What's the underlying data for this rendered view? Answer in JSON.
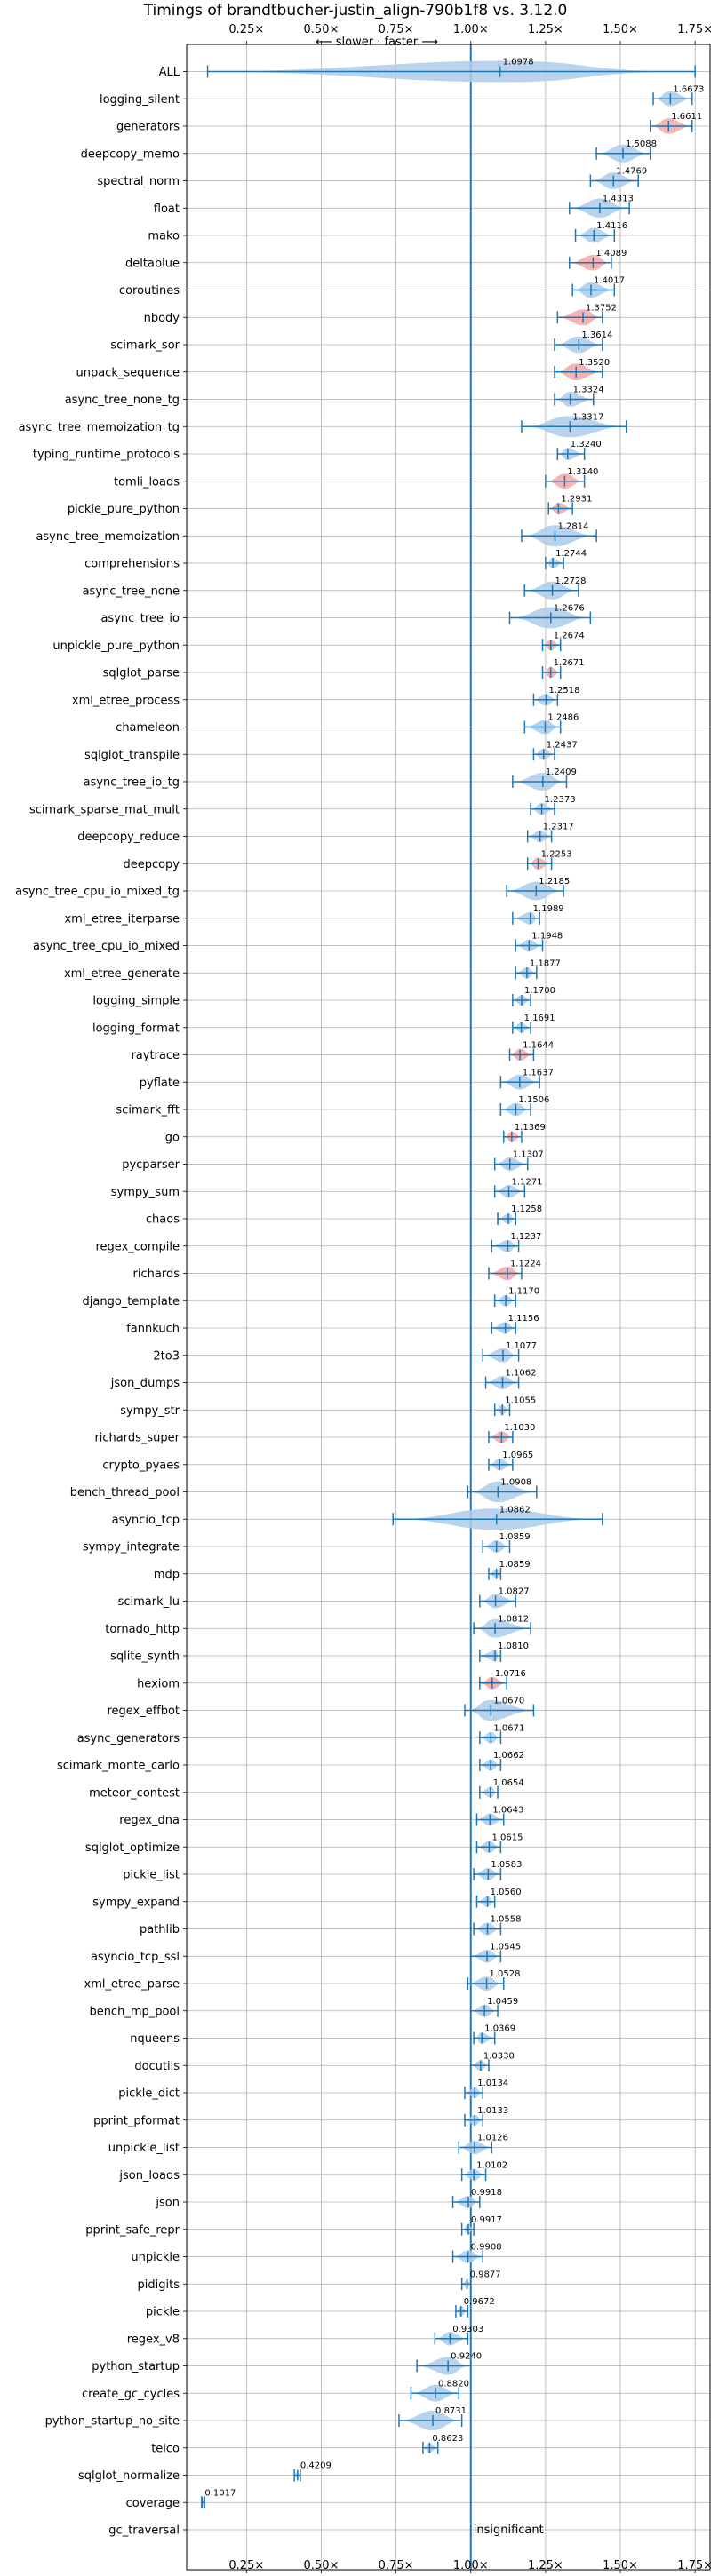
{
  "chart_data": {
    "type": "violin",
    "title": "Timings of brandtbucher-justin_align-790b1f8 vs. 3.12.0",
    "subtitle": "⟵ slower · faster ⟶",
    "xlim": [
      0.05,
      1.8
    ],
    "x_ticks": [
      0.25,
      0.5,
      0.75,
      1.0,
      1.25,
      1.5,
      1.75
    ],
    "x_tick_labels": [
      "0.25×",
      "0.50×",
      "0.75×",
      "1.00×",
      "1.25×",
      "1.50×",
      "1.75×"
    ],
    "grid": true,
    "reference_line": 1.0,
    "colors": {
      "faster": "#f4a6a6",
      "neutral": "#aecbea",
      "line": "#1f77b4"
    },
    "categories": [
      "ALL",
      "logging_silent",
      "generators",
      "deepcopy_memo",
      "spectral_norm",
      "float",
      "mako",
      "deltablue",
      "coroutines",
      "nbody",
      "scimark_sor",
      "unpack_sequence",
      "async_tree_none_tg",
      "async_tree_memoization_tg",
      "typing_runtime_protocols",
      "tomli_loads",
      "pickle_pure_python",
      "async_tree_memoization",
      "comprehensions",
      "async_tree_none",
      "async_tree_io",
      "unpickle_pure_python",
      "sqlglot_parse",
      "xml_etree_process",
      "chameleon",
      "sqlglot_transpile",
      "async_tree_io_tg",
      "scimark_sparse_mat_mult",
      "deepcopy_reduce",
      "deepcopy",
      "async_tree_cpu_io_mixed_tg",
      "xml_etree_iterparse",
      "async_tree_cpu_io_mixed",
      "xml_etree_generate",
      "logging_simple",
      "logging_format",
      "raytrace",
      "pyflate",
      "scimark_fft",
      "go",
      "pycparser",
      "sympy_sum",
      "chaos",
      "regex_compile",
      "richards",
      "django_template",
      "fannkuch",
      "2to3",
      "json_dumps",
      "sympy_str",
      "richards_super",
      "crypto_pyaes",
      "bench_thread_pool",
      "asyncio_tcp",
      "sympy_integrate",
      "mdp",
      "scimark_lu",
      "tornado_http",
      "sqlite_synth",
      "hexiom",
      "regex_effbot",
      "async_generators",
      "scimark_monte_carlo",
      "meteor_contest",
      "regex_dna",
      "sqlglot_optimize",
      "pickle_list",
      "sympy_expand",
      "pathlib",
      "asyncio_tcp_ssl",
      "xml_etree_parse",
      "bench_mp_pool",
      "nqueens",
      "docutils",
      "pickle_dict",
      "pprint_pformat",
      "unpickle_list",
      "json_loads",
      "json",
      "pprint_safe_repr",
      "unpickle",
      "pidigits",
      "pickle",
      "regex_v8",
      "python_startup",
      "create_gc_cycles",
      "python_startup_no_site",
      "telco",
      "sqlglot_normalize",
      "coverage",
      "gc_traversal"
    ],
    "values": [
      1.0978,
      1.6673,
      1.6611,
      1.5088,
      1.4769,
      1.4313,
      1.4116,
      1.4089,
      1.4017,
      1.3752,
      1.3614,
      1.352,
      1.3324,
      1.3317,
      1.324,
      1.314,
      1.2931,
      1.2814,
      1.2744,
      1.2728,
      1.2676,
      1.2674,
      1.2671,
      1.2518,
      1.2486,
      1.2437,
      1.2409,
      1.2373,
      1.2317,
      1.2253,
      1.2185,
      1.1989,
      1.1948,
      1.1877,
      1.17,
      1.1691,
      1.1644,
      1.1637,
      1.1506,
      1.1369,
      1.1307,
      1.1271,
      1.1258,
      1.1237,
      1.1224,
      1.117,
      1.1156,
      1.1077,
      1.1062,
      1.1055,
      1.103,
      1.0965,
      1.0908,
      1.0862,
      1.0859,
      1.0859,
      1.0827,
      1.0812,
      1.081,
      1.0716,
      1.067,
      1.0671,
      1.0662,
      1.0654,
      1.0643,
      1.0615,
      1.0583,
      1.056,
      1.0558,
      1.0545,
      1.0528,
      1.0459,
      1.0369,
      1.033,
      1.0134,
      1.0133,
      1.0126,
      1.0102,
      0.9918,
      0.9917,
      0.9908,
      0.9877,
      0.9672,
      0.9303,
      0.924,
      0.882,
      0.8731,
      0.8623,
      0.4209,
      0.1017,
      null
    ],
    "value_labels": [
      "1.0978",
      "1.6673",
      "1.6611",
      "1.5088",
      "1.4769",
      "1.4313",
      "1.4116",
      "1.4089",
      "1.4017",
      "1.3752",
      "1.3614",
      "1.3520",
      "1.3324",
      "1.3317",
      "1.3240",
      "1.3140",
      "1.2931",
      "1.2814",
      "1.2744",
      "1.2728",
      "1.2676",
      "1.2674",
      "1.2671",
      "1.2518",
      "1.2486",
      "1.2437",
      "1.2409",
      "1.2373",
      "1.2317",
      "1.2253",
      "1.2185",
      "1.1989",
      "1.1948",
      "1.1877",
      "1.1700",
      "1.1691",
      "1.1644",
      "1.1637",
      "1.1506",
      "1.1369",
      "1.1307",
      "1.1271",
      "1.1258",
      "1.1237",
      "1.1224",
      "1.1170",
      "1.1156",
      "1.1077",
      "1.1062",
      "1.1055",
      "1.1030",
      "1.0965",
      "1.0908",
      "1.0862",
      "1.0859",
      "1.0859",
      "1.0827",
      "1.0812",
      "1.0810",
      "1.0716",
      "1.0670",
      "1.0671",
      "1.0662",
      "1.0654",
      "1.0643",
      "1.0615",
      "1.0583",
      "1.0560",
      "1.0558",
      "1.0545",
      "1.0528",
      "1.0459",
      "1.0369",
      "1.0330",
      "1.0134",
      "1.0133",
      "1.0126",
      "1.0102",
      "0.9918",
      "0.9917",
      "0.9908",
      "0.9877",
      "0.9672",
      "0.9303",
      "0.9240",
      "0.8820",
      "0.8731",
      "0.8623",
      "0.4209",
      "0.1017",
      ""
    ],
    "ranges": [
      [
        0.12,
        1.75
      ],
      [
        1.61,
        1.74
      ],
      [
        1.6,
        1.74
      ],
      [
        1.42,
        1.6
      ],
      [
        1.4,
        1.56
      ],
      [
        1.33,
        1.53
      ],
      [
        1.35,
        1.48
      ],
      [
        1.33,
        1.47
      ],
      [
        1.34,
        1.48
      ],
      [
        1.29,
        1.44
      ],
      [
        1.28,
        1.44
      ],
      [
        1.28,
        1.44
      ],
      [
        1.28,
        1.41
      ],
      [
        1.17,
        1.52
      ],
      [
        1.29,
        1.38
      ],
      [
        1.25,
        1.38
      ],
      [
        1.26,
        1.34
      ],
      [
        1.17,
        1.42
      ],
      [
        1.25,
        1.31
      ],
      [
        1.18,
        1.36
      ],
      [
        1.13,
        1.4
      ],
      [
        1.24,
        1.3
      ],
      [
        1.24,
        1.3
      ],
      [
        1.21,
        1.29
      ],
      [
        1.18,
        1.3
      ],
      [
        1.21,
        1.28
      ],
      [
        1.14,
        1.32
      ],
      [
        1.2,
        1.28
      ],
      [
        1.19,
        1.27
      ],
      [
        1.19,
        1.27
      ],
      [
        1.12,
        1.31
      ],
      [
        1.14,
        1.23
      ],
      [
        1.15,
        1.24
      ],
      [
        1.15,
        1.22
      ],
      [
        1.14,
        1.2
      ],
      [
        1.14,
        1.2
      ],
      [
        1.13,
        1.21
      ],
      [
        1.1,
        1.23
      ],
      [
        1.1,
        1.2
      ],
      [
        1.11,
        1.17
      ],
      [
        1.08,
        1.19
      ],
      [
        1.08,
        1.18
      ],
      [
        1.09,
        1.15
      ],
      [
        1.07,
        1.16
      ],
      [
        1.06,
        1.17
      ],
      [
        1.08,
        1.15
      ],
      [
        1.07,
        1.15
      ],
      [
        1.04,
        1.16
      ],
      [
        1.05,
        1.16
      ],
      [
        1.08,
        1.13
      ],
      [
        1.06,
        1.14
      ],
      [
        1.06,
        1.14
      ],
      [
        0.99,
        1.22
      ],
      [
        0.74,
        1.44
      ],
      [
        1.04,
        1.13
      ],
      [
        1.06,
        1.1
      ],
      [
        1.03,
        1.15
      ],
      [
        1.01,
        1.2
      ],
      [
        1.03,
        1.1
      ],
      [
        1.03,
        1.12
      ],
      [
        0.98,
        1.21
      ],
      [
        1.03,
        1.1
      ],
      [
        1.03,
        1.1
      ],
      [
        1.03,
        1.09
      ],
      [
        1.02,
        1.11
      ],
      [
        1.02,
        1.1
      ],
      [
        1.01,
        1.1
      ],
      [
        1.02,
        1.08
      ],
      [
        1.01,
        1.1
      ],
      [
        1.0,
        1.1
      ],
      [
        0.99,
        1.11
      ],
      [
        1.0,
        1.09
      ],
      [
        1.01,
        1.08
      ],
      [
        1.0,
        1.06
      ],
      [
        0.98,
        1.04
      ],
      [
        0.98,
        1.04
      ],
      [
        0.96,
        1.07
      ],
      [
        0.97,
        1.05
      ],
      [
        0.94,
        1.03
      ],
      [
        0.97,
        1.01
      ],
      [
        0.94,
        1.04
      ],
      [
        0.97,
        1.0
      ],
      [
        0.95,
        0.99
      ],
      [
        0.88,
        0.99
      ],
      [
        0.82,
        1.0
      ],
      [
        0.8,
        0.96
      ],
      [
        0.76,
        0.97
      ],
      [
        0.84,
        0.89
      ],
      [
        0.41,
        0.43
      ],
      [
        0.1,
        0.11
      ],
      null
    ],
    "highlight": [
      false,
      false,
      true,
      false,
      false,
      false,
      false,
      true,
      false,
      true,
      false,
      true,
      false,
      false,
      false,
      true,
      true,
      false,
      false,
      false,
      false,
      true,
      true,
      false,
      false,
      false,
      false,
      false,
      false,
      true,
      false,
      false,
      false,
      false,
      false,
      false,
      true,
      false,
      false,
      true,
      false,
      false,
      false,
      false,
      true,
      false,
      false,
      false,
      false,
      false,
      true,
      false,
      false,
      false,
      false,
      false,
      false,
      false,
      false,
      true,
      false,
      false,
      false,
      false,
      false,
      false,
      false,
      false,
      false,
      false,
      false,
      false,
      false,
      false,
      false,
      false,
      false,
      false,
      false,
      false,
      false,
      false,
      false,
      false,
      false,
      false,
      false,
      false,
      false,
      false,
      false
    ],
    "annotations": [
      {
        "category": "gc_traversal",
        "text": "insignificant"
      }
    ]
  }
}
